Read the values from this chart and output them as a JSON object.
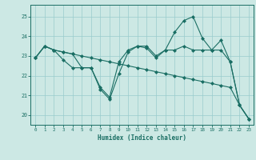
{
  "xlabel": "Humidex (Indice chaleur)",
  "bg_color": "#cce8e4",
  "line_color": "#1a6e64",
  "grid_color": "#99cccc",
  "ylim": [
    19.5,
    25.6
  ],
  "yticks": [
    20,
    21,
    22,
    23,
    24,
    25
  ],
  "xlim": [
    -0.5,
    23.5
  ],
  "xticks": [
    0,
    1,
    2,
    3,
    4,
    5,
    6,
    7,
    8,
    9,
    10,
    11,
    12,
    13,
    14,
    15,
    16,
    17,
    18,
    19,
    20,
    21,
    22,
    23
  ],
  "series1": [
    22.9,
    23.5,
    23.3,
    23.2,
    23.1,
    23.0,
    22.9,
    22.8,
    22.7,
    22.6,
    22.5,
    22.4,
    22.3,
    22.2,
    22.1,
    22.0,
    21.9,
    21.8,
    21.7,
    21.6,
    21.5,
    21.4,
    20.5,
    19.8
  ],
  "series2": [
    22.9,
    23.5,
    23.3,
    23.2,
    23.1,
    22.4,
    22.4,
    21.4,
    20.9,
    22.7,
    23.3,
    23.5,
    23.5,
    23.0,
    23.3,
    23.3,
    23.5,
    23.3,
    23.3,
    23.3,
    23.8,
    22.7,
    20.5,
    19.8
  ],
  "series3": [
    22.9,
    23.5,
    23.3,
    22.8,
    22.4,
    22.4,
    22.4,
    21.3,
    20.8,
    22.1,
    23.2,
    23.5,
    23.4,
    22.9,
    23.3,
    24.2,
    24.8,
    25.0,
    23.9,
    23.3,
    23.3,
    22.7,
    20.5,
    19.8
  ]
}
